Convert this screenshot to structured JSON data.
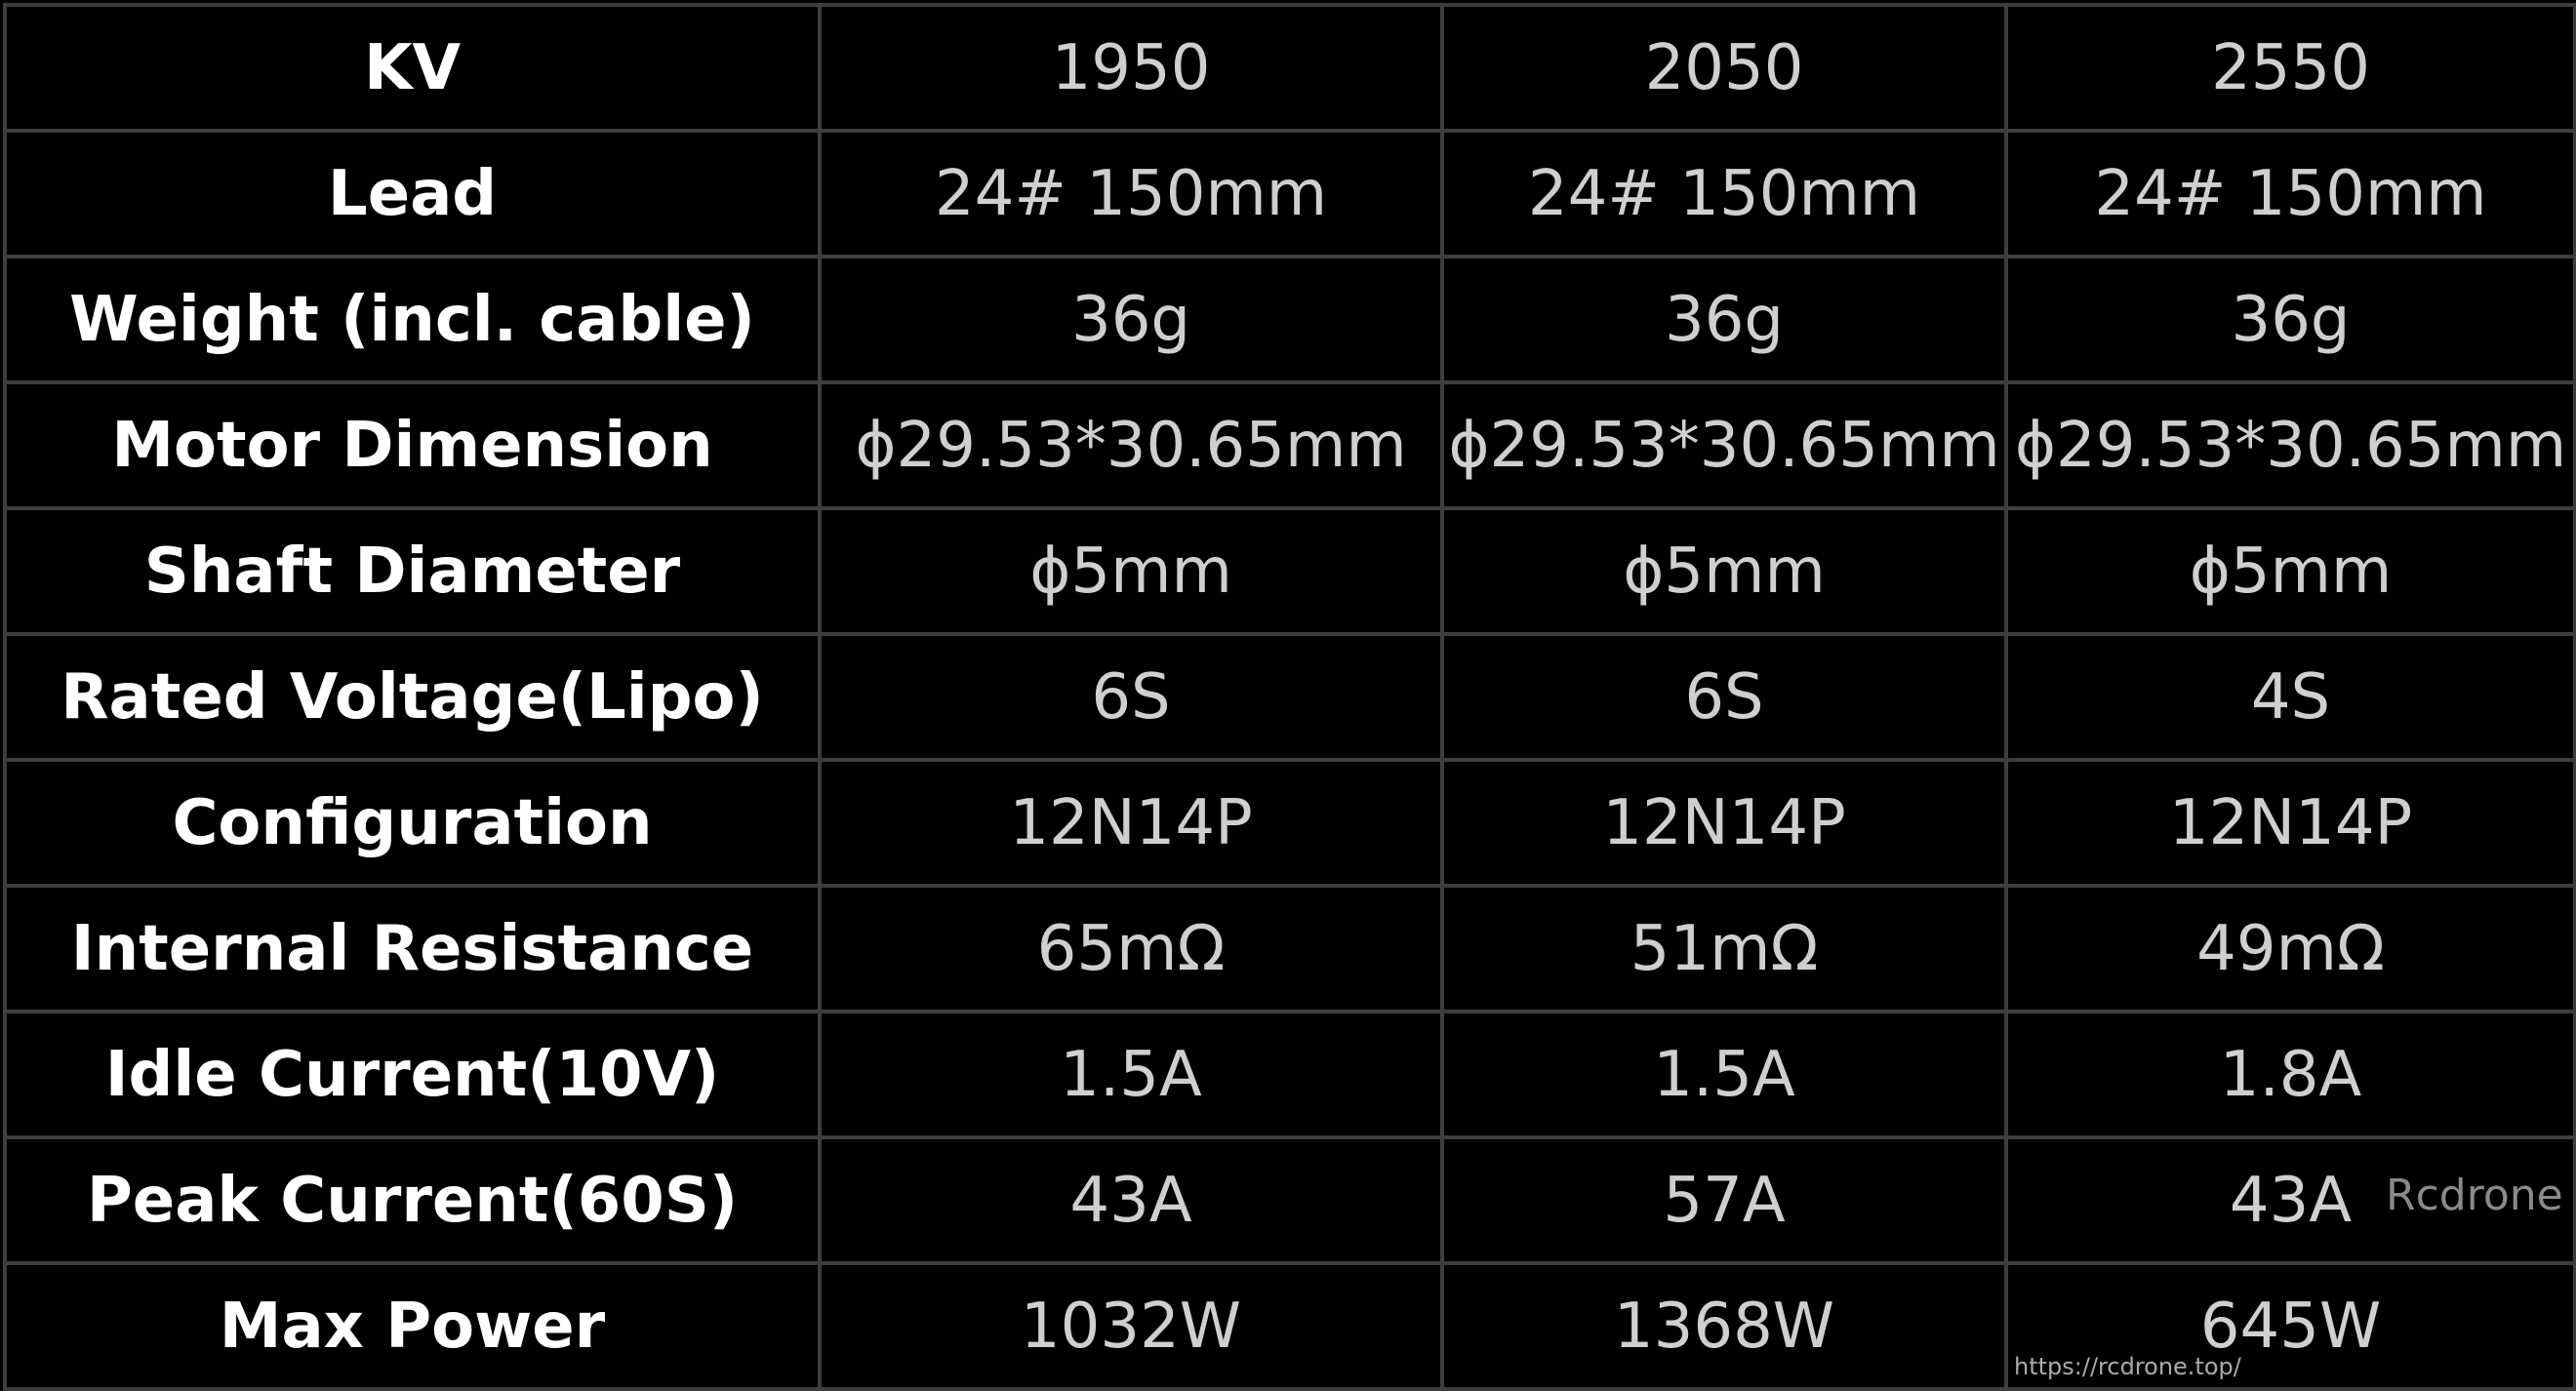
{
  "table": {
    "rows": [
      {
        "label": "KV",
        "values": [
          "1950",
          "2050",
          "2550"
        ]
      },
      {
        "label": "Lead",
        "values": [
          "24# 150mm",
          "24# 150mm",
          "24# 150mm"
        ]
      },
      {
        "label": "Weight (incl. cable)",
        "values": [
          "36g",
          "36g",
          "36g"
        ]
      },
      {
        "label": "Motor Dimension",
        "values": [
          "ϕ29.53*30.65mm",
          "ϕ29.53*30.65mm",
          "ϕ29.53*30.65mm"
        ]
      },
      {
        "label": "Shaft Diameter",
        "values": [
          "ϕ5mm",
          "ϕ5mm",
          "ϕ5mm"
        ]
      },
      {
        "label": "Rated Voltage(Lipo)",
        "values": [
          "6S",
          "6S",
          "4S"
        ]
      },
      {
        "label": "Configuration",
        "values": [
          "12N14P",
          "12N14P",
          "12N14P"
        ]
      },
      {
        "label": "Internal Resistance",
        "values": [
          "65mΩ",
          "51mΩ",
          "49mΩ"
        ]
      },
      {
        "label": "Idle Current(10V)",
        "values": [
          "1.5A",
          "1.5A",
          "1.8A"
        ]
      },
      {
        "label": "Peak Current(60S)",
        "values": [
          "43A",
          "57A",
          "43A"
        ]
      },
      {
        "label": "Max Power",
        "values": [
          "1032W",
          "1368W",
          "645W"
        ]
      }
    ]
  },
  "watermark": {
    "brand": "Rcdrone",
    "url": "https://rcdrone.top/"
  }
}
